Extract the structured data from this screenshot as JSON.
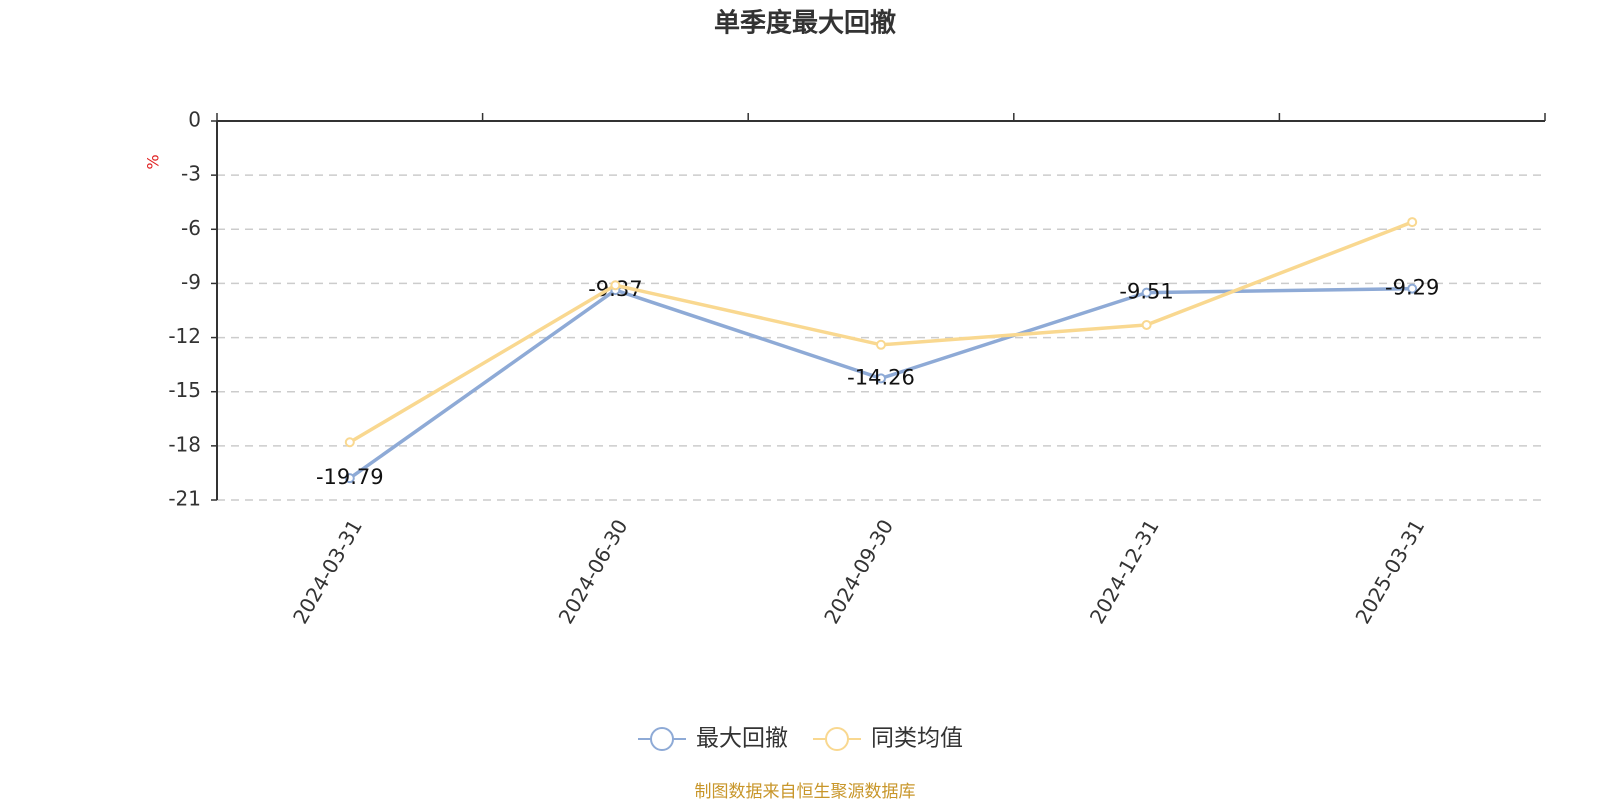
{
  "chart_data": {
    "type": "line",
    "title": "单季度最大回撤",
    "y_label": "%",
    "categories": [
      "2024-03-31",
      "2024-06-30",
      "2024-09-30",
      "2024-12-31",
      "2025-03-31"
    ],
    "series": [
      {
        "name": "最大回撤",
        "color": "#8eaad6",
        "values": [
          -19.79,
          -9.37,
          -14.26,
          -9.51,
          -9.29
        ],
        "show_labels": true
      },
      {
        "name": "同类均值",
        "color": "#f9d890",
        "values": [
          -17.8,
          -9.1,
          -12.4,
          -11.3,
          -5.6
        ],
        "show_labels": false
      }
    ],
    "ylim": [
      -21,
      0
    ],
    "yticks": [
      0,
      -3,
      -6,
      -9,
      -12,
      -15,
      -18,
      -21
    ],
    "grid": true,
    "legend": "bottom",
    "source": "制图数据来自恒生聚源数据库"
  }
}
